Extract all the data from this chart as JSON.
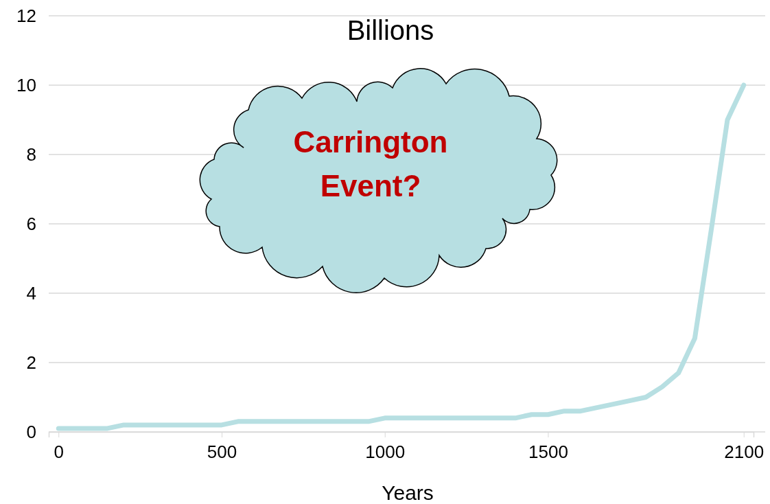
{
  "chart_data": {
    "type": "line",
    "title": "Billions",
    "xlabel": "Years",
    "x": [
      0,
      50,
      100,
      150,
      200,
      250,
      300,
      350,
      400,
      450,
      500,
      550,
      600,
      650,
      700,
      750,
      800,
      850,
      900,
      950,
      1000,
      1050,
      1100,
      1150,
      1200,
      1250,
      1300,
      1350,
      1400,
      1450,
      1500,
      1550,
      1600,
      1650,
      1700,
      1750,
      1800,
      1850,
      1900,
      1950,
      2000,
      2050,
      2100
    ],
    "series": [
      {
        "color": "#b7dfe2",
        "values": [
          0.1,
          0.1,
          0.1,
          0.1,
          0.2,
          0.2,
          0.2,
          0.2,
          0.2,
          0.2,
          0.2,
          0.3,
          0.3,
          0.3,
          0.3,
          0.3,
          0.3,
          0.3,
          0.3,
          0.3,
          0.4,
          0.4,
          0.4,
          0.4,
          0.4,
          0.4,
          0.4,
          0.4,
          0.4,
          0.5,
          0.5,
          0.6,
          0.6,
          0.7,
          0.8,
          0.9,
          1.0,
          1.3,
          1.7,
          2.7,
          5.8,
          9.0,
          10.0
        ]
      }
    ],
    "xlim": [
      -30,
      2130
    ],
    "xticks": [
      0,
      500,
      1000,
      1500,
      2100
    ],
    "ylim": [
      0,
      12
    ],
    "yticks": [
      0,
      2,
      4,
      6,
      8,
      10,
      12
    ],
    "grid": "y",
    "marker": "none",
    "line_style": "solid",
    "annotations": [
      "Carrington Event?"
    ]
  }
}
